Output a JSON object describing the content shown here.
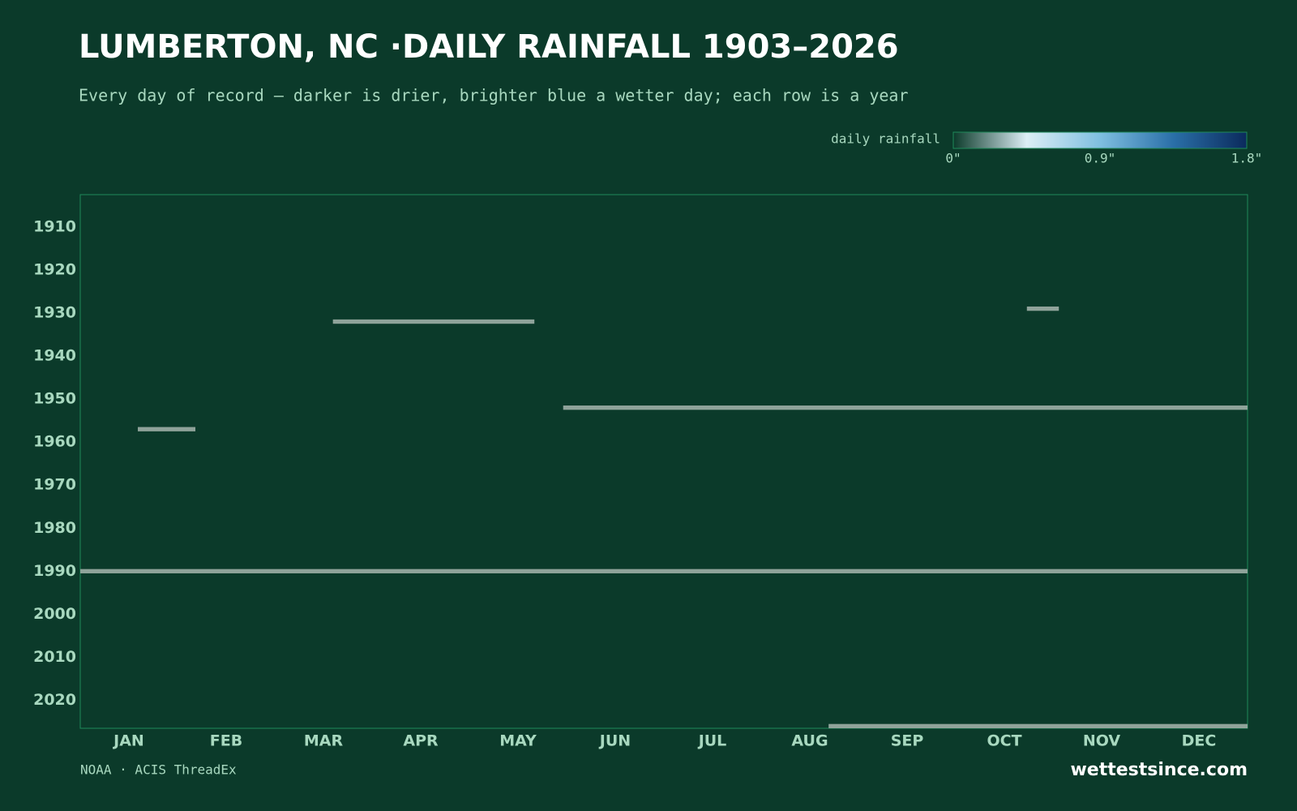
{
  "chart_data": {
    "type": "heatmap",
    "title": "LUMBERTON, NC ·DAILY RAINFALL 1903–2026",
    "subtitle": "Every day of record — darker is drier, brighter blue a wetter day; each row is a year",
    "categories": [
      "JAN",
      "FEB",
      "MAR",
      "APR",
      "MAY",
      "JUN",
      "JUL",
      "AUG",
      "SEP",
      "OCT",
      "NOV",
      "DEC"
    ],
    "xlim": [
      1,
      365
    ],
    "ylim": [
      1903,
      2026
    ],
    "yticks": [
      1910,
      1920,
      1930,
      1940,
      1950,
      1960,
      1970,
      1980,
      1990,
      2000,
      2010,
      2020
    ],
    "colorbar": {
      "label": "daily rainfall",
      "lim": [
        0,
        1.8
      ],
      "ticks": [
        {
          "value": 0,
          "label": "0\""
        },
        {
          "value": 0.9,
          "label": "0.9\""
        },
        {
          "value": 1.8,
          "label": "1.8\""
        }
      ],
      "colors": [
        "#0b3a2a",
        "#dceef5",
        "#7fbfe0",
        "#2a6fa8",
        "#0b2a5c"
      ]
    },
    "missing_color": "#8fa39a",
    "missing": [
      {
        "year": 1929,
        "start": 297,
        "end": 306
      },
      {
        "year": 1932,
        "start": 80,
        "end": 142
      },
      {
        "year": 1952,
        "start": 152,
        "end": 365
      },
      {
        "year": 1957,
        "start": 19,
        "end": 36
      },
      {
        "year": 1990,
        "start": 1,
        "end": 365
      },
      {
        "year": 2026,
        "start": 235,
        "end": 365
      }
    ],
    "source": "NOAA · ACIS ThreadEx",
    "brand": "wettestsince.com"
  }
}
